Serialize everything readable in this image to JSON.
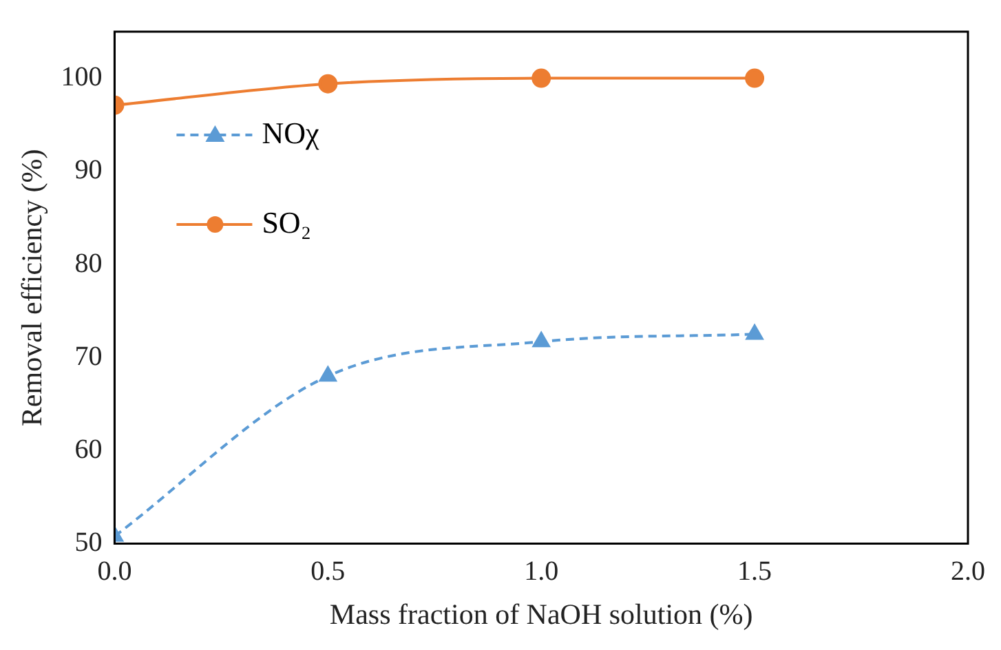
{
  "chart_data": {
    "type": "line",
    "xlabel": "Mass fraction of NaOH solution (%)",
    "ylabel": "Removal efficiency (%)",
    "x": [
      0,
      0.5,
      1.0,
      1.5
    ],
    "series": [
      {
        "name": "NOχ",
        "color": "#5b9bd5",
        "values": [
          50.8,
          68.0,
          71.7,
          72.5
        ],
        "marker": "triangle",
        "line_style": "dashed"
      },
      {
        "name": "SO₂",
        "color": "#ed7d31",
        "values": [
          97.1,
          99.4,
          100,
          100
        ],
        "marker": "circle",
        "line_style": "solid"
      }
    ],
    "xlim": [
      0,
      2.0
    ],
    "xticks": [
      {
        "value": 0,
        "label": "0.0"
      },
      {
        "value": 0.5,
        "label": "0.5"
      },
      {
        "value": 1.0,
        "label": "1.0"
      },
      {
        "value": 1.5,
        "label": "1.5"
      },
      {
        "value": 2.0,
        "label": "2.0"
      }
    ],
    "ylim": [
      50,
      105
    ],
    "yticks": [
      50,
      60,
      70,
      80,
      90,
      100
    ],
    "grid": false,
    "legend": "top left"
  }
}
